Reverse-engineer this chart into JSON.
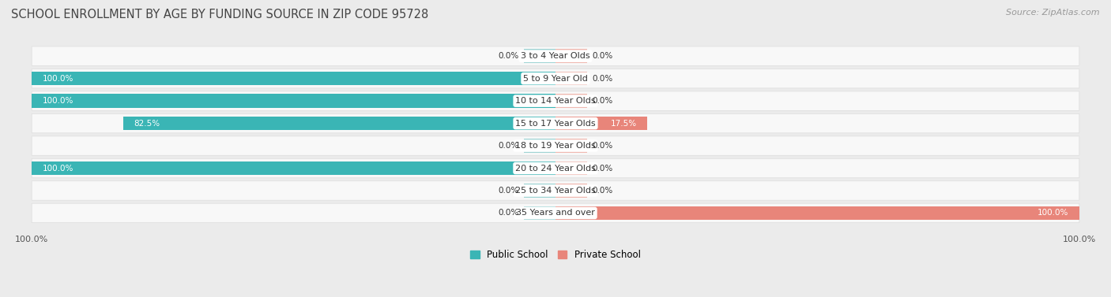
{
  "title": "SCHOOL ENROLLMENT BY AGE BY FUNDING SOURCE IN ZIP CODE 95728",
  "source": "Source: ZipAtlas.com",
  "categories": [
    "3 to 4 Year Olds",
    "5 to 9 Year Old",
    "10 to 14 Year Olds",
    "15 to 17 Year Olds",
    "18 to 19 Year Olds",
    "20 to 24 Year Olds",
    "25 to 34 Year Olds",
    "35 Years and over"
  ],
  "public_values": [
    0.0,
    100.0,
    100.0,
    82.5,
    0.0,
    100.0,
    0.0,
    0.0
  ],
  "private_values": [
    0.0,
    0.0,
    0.0,
    17.5,
    0.0,
    0.0,
    0.0,
    100.0
  ],
  "public_color": "#3ab5b5",
  "private_color": "#e8857a",
  "public_color_light": "#9fd4d4",
  "private_color_light": "#f0b8b0",
  "bg_color": "#ebebeb",
  "bar_bg_color": "#f8f8f8",
  "row_border_color": "#dddddd",
  "title_fontsize": 10.5,
  "source_fontsize": 8,
  "label_fontsize": 8,
  "pct_fontsize": 7.5,
  "axis_label_fontsize": 8,
  "legend_fontsize": 8.5,
  "bar_height": 0.62,
  "total_width": 100,
  "stub_size": 6
}
